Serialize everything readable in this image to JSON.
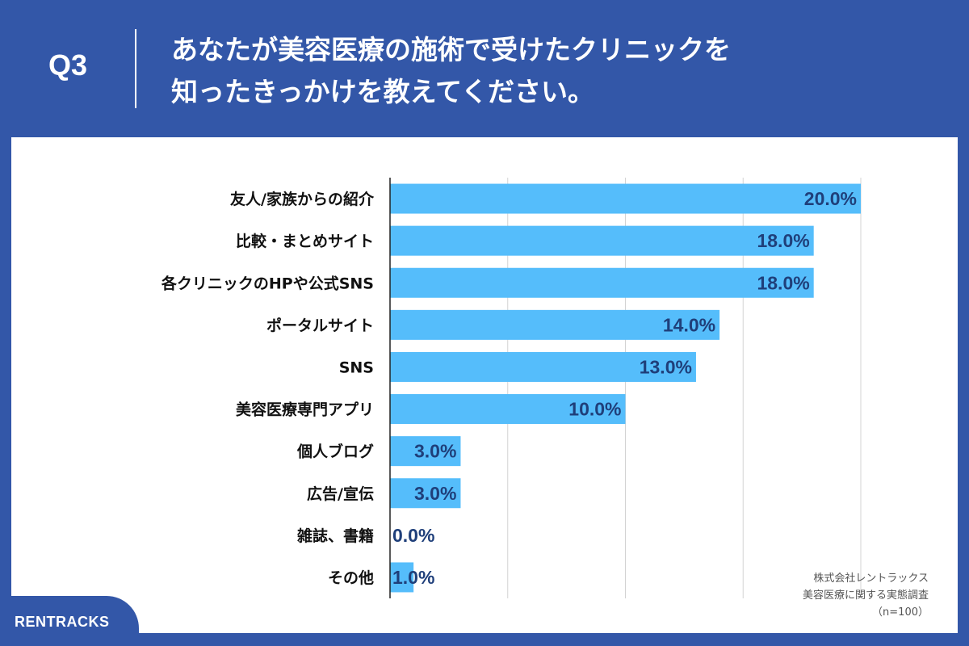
{
  "header": {
    "q_label": "Q3",
    "title_line1": "あなたが美容医療の施術で受けたクリニックを",
    "title_line2": "知ったきっかけを教えてください。"
  },
  "credit": {
    "line1": "株式会社レントラックス",
    "line2": "美容医療に関する実態調査",
    "line3": "（n=100）"
  },
  "brand": "RENTRACKS",
  "colors": {
    "background": "#3357a8",
    "bar": "#55bdfb",
    "value_label": "#1f3f7a",
    "grid": "#d3d3d3"
  },
  "chart_data": {
    "type": "bar",
    "orientation": "horizontal",
    "categories": [
      "友人/家族からの紹介",
      "比較・まとめサイト",
      "各クリニックのHPや公式SNS",
      "ポータルサイト",
      "SNS",
      "美容医療専門アプリ",
      "個人ブログ",
      "広告/宣伝",
      "雑誌、書籍",
      "その他"
    ],
    "values": [
      20.0,
      18.0,
      18.0,
      14.0,
      13.0,
      10.0,
      3.0,
      3.0,
      0.0,
      1.0
    ],
    "value_labels": [
      "20.0%",
      "18.0%",
      "18.0%",
      "14.0%",
      "13.0%",
      "10.0%",
      "3.0%",
      "3.0%",
      "0.0%",
      "1.0%"
    ],
    "xlim": [
      0,
      20
    ],
    "grid": true
  }
}
